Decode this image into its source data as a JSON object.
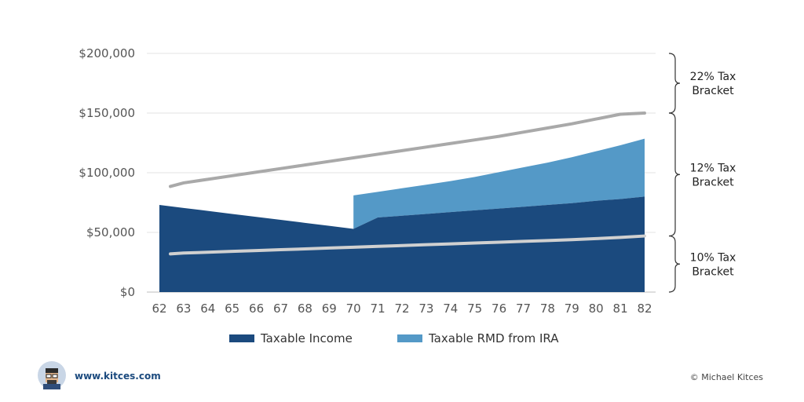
{
  "chart_data": {
    "type": "area",
    "x": [
      62,
      63,
      64,
      65,
      66,
      67,
      68,
      69,
      70,
      71,
      72,
      73,
      74,
      75,
      76,
      77,
      78,
      79,
      80,
      81,
      82
    ],
    "ylim": [
      0,
      200000
    ],
    "y_ticks": [
      0,
      50000,
      100000,
      150000,
      200000
    ],
    "y_tick_labels": [
      "$0",
      "$50,000",
      "$100,000",
      "$150,000",
      "$200,000"
    ],
    "x_tick_labels": [
      "62",
      "63",
      "64",
      "65",
      "66",
      "67",
      "68",
      "69",
      "70",
      "71",
      "72",
      "73",
      "74",
      "75",
      "76",
      "77",
      "78",
      "79",
      "80",
      "81",
      "82"
    ],
    "grid": "horizontal",
    "legend_position": "bottom",
    "series": [
      {
        "name": "Taxable Income",
        "color": "#1b4a7e",
        "values": [
          73000,
          70500,
          68000,
          65500,
          63000,
          60500,
          58000,
          55500,
          53000,
          62500,
          64000,
          65500,
          67000,
          68500,
          70000,
          71500,
          73000,
          74500,
          76500,
          78000,
          80000
        ]
      },
      {
        "name": "Taxable RMD from IRA",
        "color": "#5499c7",
        "note_stacked_on": "Taxable Income",
        "start_x": 70,
        "totals": [
          null,
          null,
          null,
          null,
          null,
          null,
          null,
          null,
          81000,
          84000,
          87000,
          90000,
          93000,
          96500,
          100500,
          104500,
          108500,
          113000,
          118000,
          123000,
          128500
        ]
      }
    ],
    "threshold_lines": [
      {
        "color": "#d0d0d0",
        "values": [
          32000,
          32700,
          33400,
          34100,
          34800,
          35500,
          36200,
          36900,
          37600,
          38300,
          39000,
          39700,
          40400,
          41100,
          41800,
          42500,
          43200,
          43900,
          44800,
          45800,
          47000
        ]
      },
      {
        "color": "#a9a9a9",
        "values": [
          88500,
          91500,
          94500,
          97500,
          100500,
          103500,
          106500,
          109500,
          112500,
          115500,
          118500,
          121500,
          124500,
          127500,
          130500,
          134000,
          137500,
          141000,
          145000,
          149000,
          150000
        ]
      }
    ],
    "brackets": [
      {
        "label_line1": "22% Tax",
        "label_line2": "Bracket",
        "from": 150000,
        "to": 200000
      },
      {
        "label_line1": "12% Tax",
        "label_line2": "Bracket",
        "from": 47000,
        "to": 150000
      },
      {
        "label_line1": "10% Tax",
        "label_line2": "Bracket",
        "from": 0,
        "to": 47000
      }
    ]
  },
  "footer": {
    "url": "www.kitces.com",
    "copyright": "© Michael Kitces",
    "logo_icon": "kitces-avatar-icon"
  }
}
